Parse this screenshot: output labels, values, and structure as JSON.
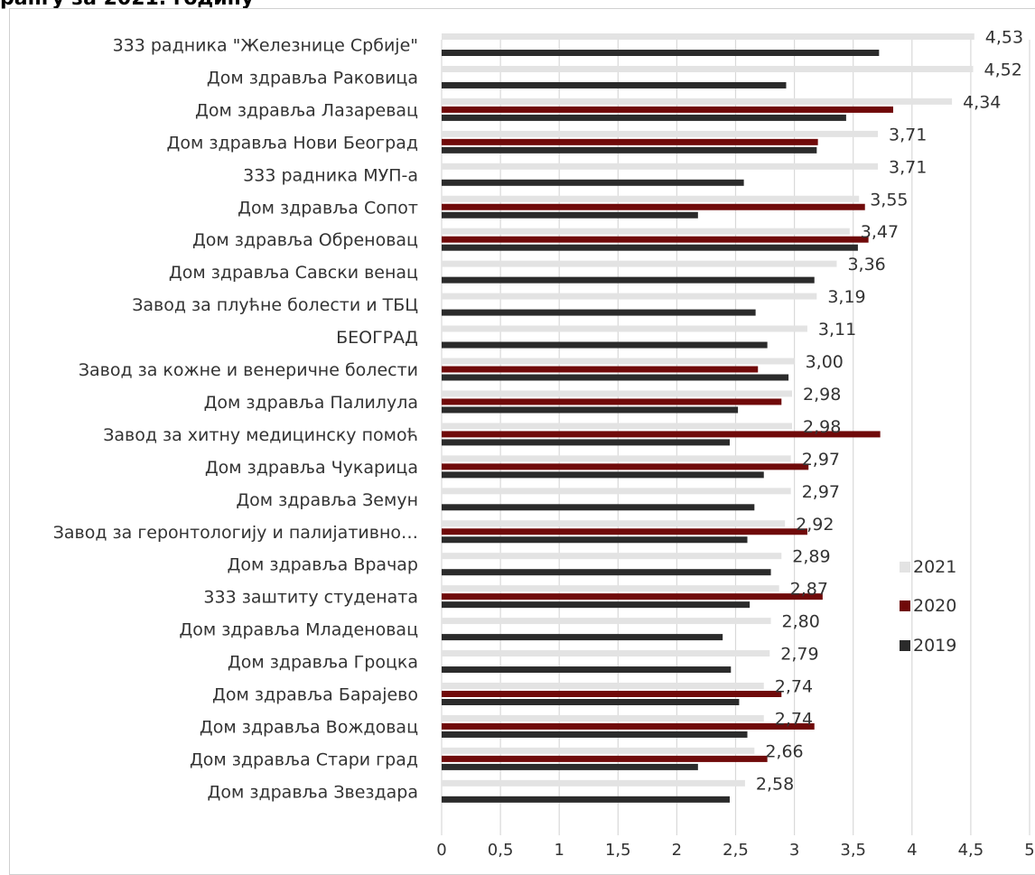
{
  "page": {
    "title_fragment": "рангу за 2021. годину"
  },
  "chart_data": {
    "type": "bar",
    "orientation": "horizontal",
    "categories": [
      "333 радника \"Железнице Србије\"",
      "Дом здравља Раковица",
      "Дом здравља Лазаревац",
      "Дом здравља Нови Београд",
      "333 радника МУП-а",
      "Дом здравља Сопот",
      "Дом здравља Обреновац",
      "Дом здравља Савски венац",
      "Завод за плућне болести и ТБЦ",
      "БЕОГРАД",
      "Завод за кожне и венеричне болести",
      "Дом здравља Палилула",
      "Завод за хитну медицинску помоћ",
      "Дом здравља Чукарица",
      "Дом здравља Земун",
      "Завод за геронтологију и палијативно…",
      "Дом здравља Врачар",
      "333 заштиту студената",
      "Дом здравља Младеновац",
      "Дом здравља Гроцка",
      "Дом здравља Барајево",
      "Дом здравља Вождовац",
      "Дом здравља Стари град",
      "Дом здравља Звездара"
    ],
    "series": [
      {
        "name": "2021",
        "color": "#e3e3e3",
        "values": [
          4.53,
          4.52,
          4.34,
          3.71,
          3.71,
          3.55,
          3.47,
          3.36,
          3.19,
          3.11,
          3.0,
          2.98,
          2.98,
          2.97,
          2.97,
          2.92,
          2.89,
          2.87,
          2.8,
          2.79,
          2.74,
          2.74,
          2.66,
          2.58
        ],
        "data_labels": [
          "4,53",
          "4,52",
          "4,34",
          "3,71",
          "3,71",
          "3,55",
          "3,47",
          "3,36",
          "3,19",
          "3,11",
          "3,00",
          "2,98",
          "2,98",
          "2,97",
          "2,97",
          "2,92",
          "2,89",
          "2,87",
          "2,80",
          "2,79",
          "2,74",
          "2,74",
          "2,66",
          "2,58"
        ]
      },
      {
        "name": "2020",
        "color": "#700a0a",
        "values": [
          null,
          null,
          3.84,
          3.2,
          null,
          3.6,
          3.63,
          null,
          null,
          null,
          2.69,
          2.89,
          3.73,
          3.12,
          null,
          3.11,
          null,
          3.24,
          null,
          null,
          2.89,
          3.17,
          2.77,
          null
        ]
      },
      {
        "name": "2019",
        "color": "#2b2b2b",
        "values": [
          3.72,
          2.93,
          3.44,
          3.19,
          2.57,
          2.18,
          3.54,
          3.17,
          2.67,
          2.77,
          2.95,
          2.52,
          2.45,
          2.74,
          2.66,
          2.6,
          2.8,
          2.62,
          2.39,
          2.46,
          2.53,
          2.6,
          2.18,
          2.45
        ]
      }
    ],
    "x_ticks": [
      "0",
      "0,5",
      "1",
      "1,5",
      "2",
      "2,5",
      "3",
      "3,5",
      "4",
      "4,5",
      "5"
    ],
    "xlim": [
      0,
      5
    ],
    "grid": "vertical",
    "legend": {
      "placement": "right",
      "order": [
        "2021",
        "2020",
        "2019"
      ]
    }
  }
}
